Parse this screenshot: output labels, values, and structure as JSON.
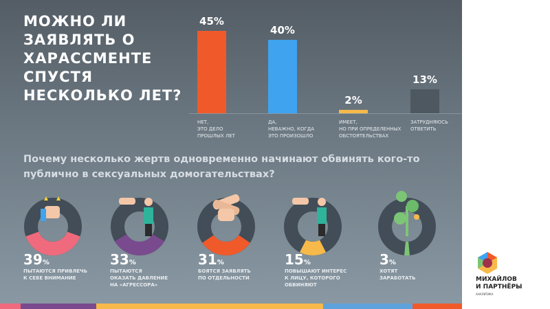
{
  "title": "МОЖНО ЛИ ЗАЯВЛЯТЬ О ХАРАССМЕНТЕ СПУСТЯ НЕСКОЛЬКО ЛЕТ?",
  "bars": [
    {
      "value": 45,
      "label": "45%",
      "text": "НЕТ,\nЭТО ДЕЛО\nПРОШЛЫХ ЛЕТ",
      "color": "#f05a2b"
    },
    {
      "value": 40,
      "label": "40%",
      "text": "ДА,\nНЕВАЖНО, КОГДА\nЭТО ПРОИЗОШЛО",
      "color": "#3fa3ef"
    },
    {
      "value": 2,
      "label": "2%",
      "text": "ИМЕЕТ,\nНО ПРИ ОПРЕДЕЛЕННЫХ\nОБСТОЯТЕЛЬСТВАХ",
      "color": "#f7b94a"
    },
    {
      "value": 13,
      "label": "13%",
      "text": "ЗАТРУДНЯЮСЬ\nОТВЕТИТЬ",
      "color": "#4d5860"
    }
  ],
  "question": "Почему несколько жертв одновременно начинают обвинять кого-то публично в сексуальных домогательствах?",
  "stats": [
    {
      "value": 39,
      "num": "39",
      "unit": "%",
      "text": "ПЫТАЮТСЯ ПРИВЛЕЧЬ\nК СЕБЕ ВНИМАНИЕ",
      "color": "#f06a7d",
      "icon": "thumbs-up-stars-icon"
    },
    {
      "value": 33,
      "num": "33",
      "unit": "%",
      "text": "ПЫТАЮТСЯ\nОКАЗАТЬ ДАВЛЕНИЕ\nНА «АГРЕССОРА»",
      "color": "#7a4a8e",
      "icon": "pointing-hand-person-icon"
    },
    {
      "value": 31,
      "num": "31",
      "unit": "%",
      "text": "БОЯТСЯ ЗАЯВЛЯТЬ\nПО ОТДЕЛЬНОСТИ",
      "color": "#f05a2b",
      "icon": "stacked-hands-icon"
    },
    {
      "value": 15,
      "num": "15",
      "unit": "%",
      "text": "ПОВЫШАЮТ ИНТЕРЕС\nК ЛИЦУ, КОТОРОГО\nОБВИНЯЮТ",
      "color": "#f7b94a",
      "icon": "thumbs-up-person-icon"
    },
    {
      "value": 3,
      "num": "3",
      "unit": "%",
      "text": "ХОТЯТ\nЗАРАБОТАТЬ",
      "color": "#7cc576",
      "icon": "money-tree-icon"
    }
  ],
  "ring_color": "#424d57",
  "stripe_colors": [
    "#f06a7d",
    "#7a4a8e",
    "#f7b94a",
    "#5ea2dc",
    "#f05a2b"
  ],
  "logo": {
    "name": "МИХАЙЛОВ\nИ ПАРТНЁРЫ",
    "sub": "АНАЛИТИКА"
  }
}
